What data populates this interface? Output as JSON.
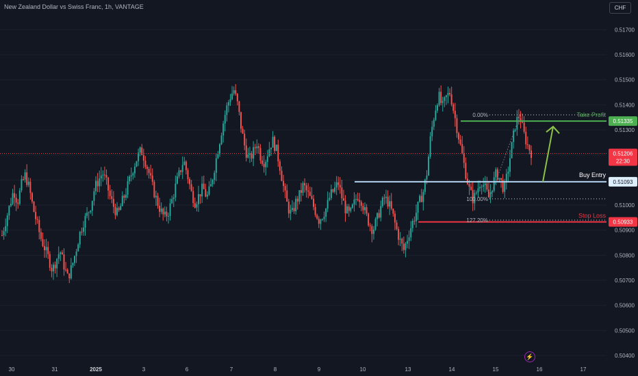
{
  "title": "New Zealand Dollar vs Swiss Franc, 1h, VANTAGE",
  "currency_button": "CHF",
  "flash_icon": "lightning-icon",
  "chart_data": {
    "type": "candlestick",
    "ylim": [
      0.504,
      0.5175
    ],
    "y_ticks": [
      "0.51700",
      "0.51600",
      "0.51500",
      "0.51400",
      "0.51300",
      "0.51200",
      "0.51100",
      "0.51000",
      "0.50900",
      "0.50800",
      "0.50700",
      "0.50600",
      "0.50500",
      "0.50400"
    ],
    "x_ticks": [
      "30",
      "31",
      "2025",
      "3",
      "6",
      "7",
      "8",
      "9",
      "10",
      "13",
      "14",
      "15",
      "16",
      "17"
    ],
    "colors": {
      "up": "#26a69a",
      "down": "#ef5350",
      "take_profit": "#4caf50",
      "buy_entry": "#b3d4f2",
      "stop_loss": "#f23645",
      "arrow": "#8bc34a"
    },
    "levels": {
      "take_profit": {
        "label": "Take Profit",
        "value": "0.51335",
        "price": 0.51335
      },
      "buy_entry": {
        "label": "Buy Entry",
        "value": "0.51093",
        "price": 0.51093
      },
      "stop_loss": {
        "label": "Stop Loss",
        "value": "0.50933",
        "price": 0.50933
      },
      "current": {
        "value": "0.51206",
        "countdown": "22:30",
        "price": 0.51206
      }
    },
    "fib": {
      "zero": {
        "label": "0.00%",
        "price": 0.5136
      },
      "hundred": {
        "label": "100.00%",
        "price": 0.51025
      },
      "ext": {
        "label": "127.20%",
        "price": 0.5094
      }
    },
    "closes": [
      0.5088,
      0.5094,
      0.51,
      0.5106,
      0.5101,
      0.5108,
      0.5112,
      0.5107,
      0.5099,
      0.5093,
      0.5087,
      0.5083,
      0.5079,
      0.5074,
      0.5078,
      0.5082,
      0.5076,
      0.5071,
      0.5075,
      0.5081,
      0.5088,
      0.5093,
      0.5096,
      0.51,
      0.5107,
      0.511,
      0.5113,
      0.5109,
      0.5103,
      0.5099,
      0.5096,
      0.5101,
      0.5105,
      0.511,
      0.5115,
      0.5119,
      0.5122,
      0.5118,
      0.5113,
      0.5107,
      0.5102,
      0.5098,
      0.5095,
      0.5097,
      0.5102,
      0.5108,
      0.5113,
      0.5118,
      0.5112,
      0.5105,
      0.5101,
      0.5104,
      0.5107,
      0.5103,
      0.5107,
      0.5115,
      0.5123,
      0.5131,
      0.5138,
      0.5143,
      0.5146,
      0.514,
      0.513,
      0.5122,
      0.5118,
      0.5121,
      0.5125,
      0.5119,
      0.5117,
      0.5122,
      0.5126,
      0.5122,
      0.5115,
      0.5106,
      0.5099,
      0.5096,
      0.5101,
      0.5104,
      0.5108,
      0.5105,
      0.5102,
      0.5098,
      0.5094,
      0.5096,
      0.5099,
      0.5104,
      0.5106,
      0.5109,
      0.5103,
      0.5098,
      0.5096,
      0.51,
      0.5104,
      0.5102,
      0.5097,
      0.5093,
      0.509,
      0.5094,
      0.5099,
      0.5103,
      0.5101,
      0.5097,
      0.5091,
      0.5086,
      0.5082,
      0.5087,
      0.5092,
      0.5096,
      0.5101,
      0.5105,
      0.5113,
      0.5128,
      0.5137,
      0.5144,
      0.5139,
      0.5143,
      0.5145,
      0.5137,
      0.5129,
      0.5121,
      0.5113,
      0.5106,
      0.5102,
      0.5106,
      0.511,
      0.5107,
      0.5103,
      0.5108,
      0.5113,
      0.511,
      0.5106,
      0.5114,
      0.5124,
      0.5133,
      0.5136,
      0.5129,
      0.5124,
      0.5121
    ]
  }
}
